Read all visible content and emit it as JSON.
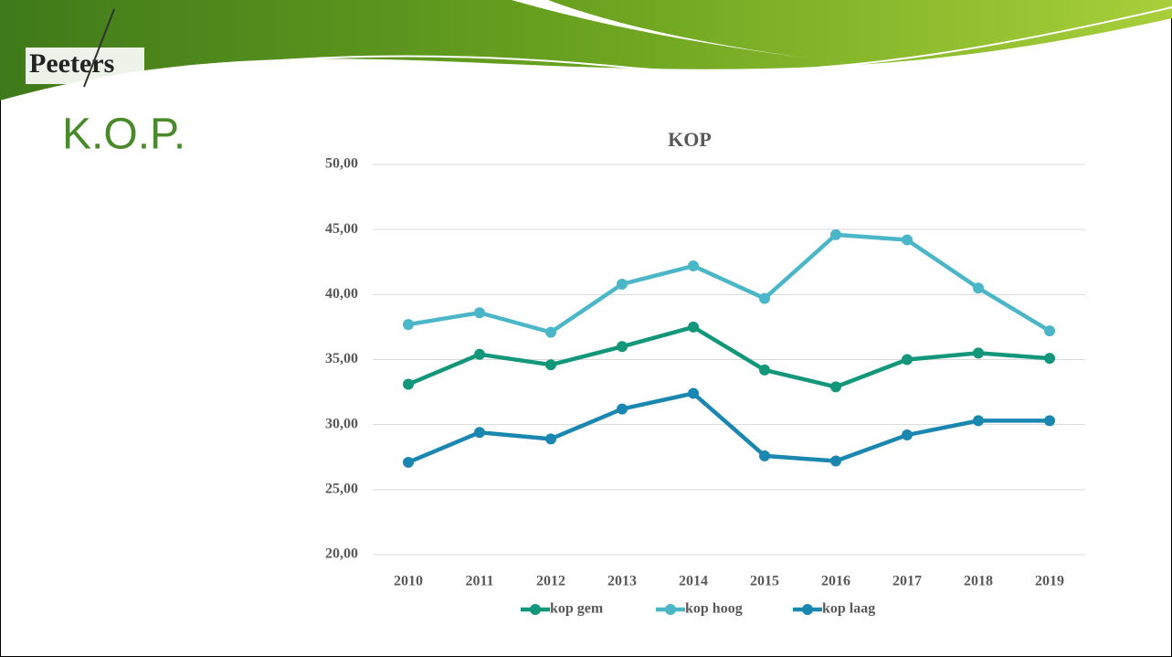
{
  "logo": "Peeters",
  "slide_title": "K.O.P.",
  "chart_data": {
    "type": "line",
    "title": "KOP",
    "categories": [
      "2010",
      "2011",
      "2012",
      "2013",
      "2014",
      "2015",
      "2016",
      "2017",
      "2018",
      "2019"
    ],
    "series": [
      {
        "name": "kop gem",
        "color": "#12977a",
        "values": [
          33.1,
          35.4,
          34.6,
          36.0,
          37.5,
          34.2,
          32.9,
          35.0,
          35.5,
          35.1
        ]
      },
      {
        "name": "kop hoog",
        "color": "#4cb6c9",
        "values": [
          37.7,
          38.6,
          37.1,
          40.8,
          42.2,
          39.7,
          44.6,
          44.2,
          40.5,
          37.2
        ]
      },
      {
        "name": "kop laag",
        "color": "#1a87b1",
        "values": [
          27.1,
          29.4,
          28.9,
          31.2,
          32.4,
          27.6,
          27.2,
          29.2,
          30.3,
          30.3
        ]
      }
    ],
    "ylim": [
      20,
      50
    ],
    "yticks": [
      {
        "value": 20,
        "label": "20,00"
      },
      {
        "value": 25,
        "label": "25,00"
      },
      {
        "value": 30,
        "label": "30,00"
      },
      {
        "value": 35,
        "label": "35,00"
      },
      {
        "value": 40,
        "label": "40,00"
      },
      {
        "value": 45,
        "label": "45,00"
      },
      {
        "value": 50,
        "label": "50,00"
      }
    ],
    "grid": true,
    "legend": "bottom"
  }
}
